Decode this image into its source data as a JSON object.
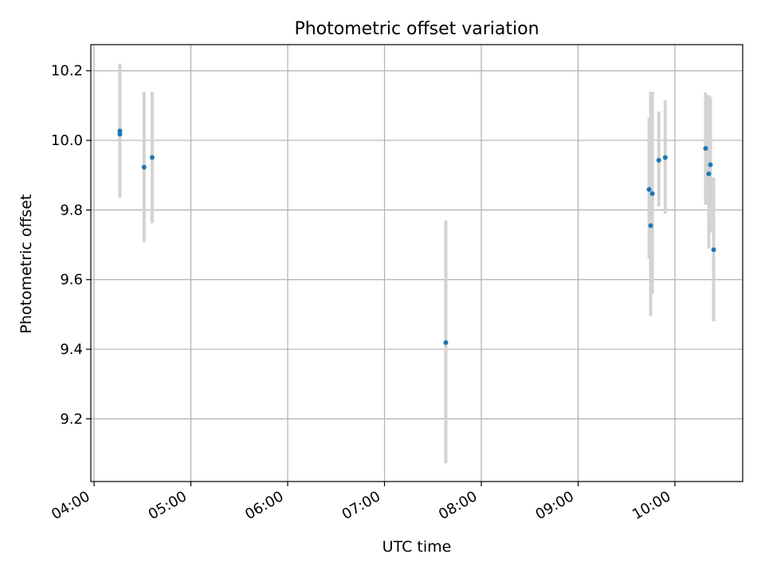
{
  "chart_data": {
    "type": "scatter",
    "title": "Photometric offset variation",
    "xlabel": "UTC time",
    "ylabel": "Photometric offset",
    "x_tick_labels": [
      "04:00",
      "05:00",
      "06:00",
      "07:00",
      "08:00",
      "09:00",
      "10:00"
    ],
    "x_ticks": [
      "04:00",
      "05:00",
      "06:00",
      "07:00",
      "08:00",
      "09:00",
      "10:00"
    ],
    "xlim": [
      "03:58",
      "10:42"
    ],
    "y_tick_labels": [
      "9.2",
      "9.4",
      "9.6",
      "9.8",
      "10.0",
      "10.2"
    ],
    "y_ticks": [
      9.2,
      9.4,
      9.6,
      9.8,
      10.0,
      10.2
    ],
    "ylim": [
      9.02,
      10.275
    ],
    "grid": true,
    "point_color": "#1f77b4",
    "errorbar_color": "#d3d3d3",
    "points": [
      {
        "x": "04:16",
        "y": 10.027,
        "ylow": 9.835,
        "yhigh": 10.22
      },
      {
        "x": "04:16",
        "y": 10.018,
        "ylow": 9.835,
        "yhigh": 10.2
      },
      {
        "x": "04:31",
        "y": 9.923,
        "ylow": 9.708,
        "yhigh": 10.14
      },
      {
        "x": "04:36",
        "y": 9.951,
        "ylow": 9.762,
        "yhigh": 10.14
      },
      {
        "x": "07:38",
        "y": 9.419,
        "ylow": 9.072,
        "yhigh": 9.77
      },
      {
        "x": "09:44",
        "y": 9.859,
        "ylow": 9.66,
        "yhigh": 10.065
      },
      {
        "x": "09:45",
        "y": 9.755,
        "ylow": 9.495,
        "yhigh": 10.14
      },
      {
        "x": "09:46",
        "y": 9.847,
        "ylow": 9.56,
        "yhigh": 10.14
      },
      {
        "x": "09:50",
        "y": 9.943,
        "ylow": 9.81,
        "yhigh": 10.083
      },
      {
        "x": "09:54",
        "y": 9.951,
        "ylow": 9.79,
        "yhigh": 10.115
      },
      {
        "x": "10:19",
        "y": 9.977,
        "ylow": 9.815,
        "yhigh": 10.138
      },
      {
        "x": "10:21",
        "y": 9.904,
        "ylow": 9.69,
        "yhigh": 10.13
      },
      {
        "x": "10:22",
        "y": 9.93,
        "ylow": 9.735,
        "yhigh": 10.125
      },
      {
        "x": "10:24",
        "y": 9.686,
        "ylow": 9.48,
        "yhigh": 9.893
      }
    ]
  }
}
